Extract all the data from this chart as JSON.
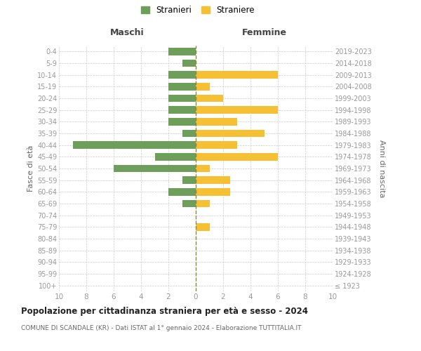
{
  "age_groups": [
    "100+",
    "95-99",
    "90-94",
    "85-89",
    "80-84",
    "75-79",
    "70-74",
    "65-69",
    "60-64",
    "55-59",
    "50-54",
    "45-49",
    "40-44",
    "35-39",
    "30-34",
    "25-29",
    "20-24",
    "15-19",
    "10-14",
    "5-9",
    "0-4"
  ],
  "birth_years": [
    "≤ 1923",
    "1924-1928",
    "1929-1933",
    "1934-1938",
    "1939-1943",
    "1944-1948",
    "1949-1953",
    "1954-1958",
    "1959-1963",
    "1964-1968",
    "1969-1973",
    "1974-1978",
    "1979-1983",
    "1984-1988",
    "1989-1993",
    "1994-1998",
    "1999-2003",
    "2004-2008",
    "2009-2013",
    "2014-2018",
    "2019-2023"
  ],
  "maschi": [
    0,
    0,
    0,
    0,
    0,
    0,
    0,
    1,
    2,
    1,
    6,
    3,
    9,
    1,
    2,
    2,
    2,
    2,
    2,
    1,
    2
  ],
  "femmine": [
    0,
    0,
    0,
    0,
    0,
    1,
    0,
    1,
    2.5,
    2.5,
    1,
    6,
    3,
    5,
    3,
    6,
    2,
    1,
    6,
    0,
    0
  ],
  "color_maschi": "#6d9e5a",
  "color_femmine": "#f5c033",
  "xlim": 10,
  "title": "Popolazione per cittadinanza straniera per età e sesso - 2024",
  "subtitle": "COMUNE DI SCANDALE (KR) - Dati ISTAT al 1° gennaio 2024 - Elaborazione TUTTITALIA.IT",
  "ylabel_left": "Fasce di età",
  "ylabel_right": "Anni di nascita",
  "label_maschi": "Stranieri",
  "label_femmine": "Straniere",
  "header_left": "Maschi",
  "header_right": "Femmine",
  "bg_color": "#ffffff",
  "grid_color": "#cccccc",
  "tick_color": "#999999"
}
